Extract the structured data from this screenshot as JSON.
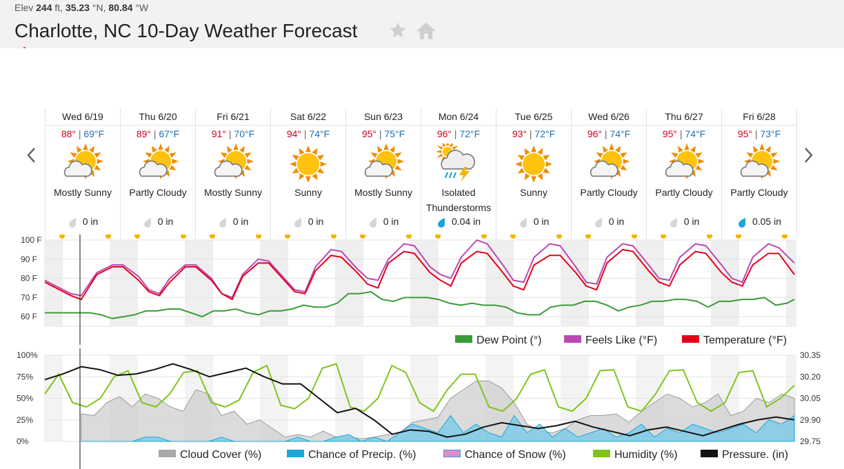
{
  "header": {
    "elev_label": "Elev",
    "elev_value": "244",
    "elev_unit": "ft,",
    "lat_value": "35.23",
    "lat_unit": "°N,",
    "lon_value": "80.84",
    "lon_unit": "°W",
    "title": "Charlotte, NC 10-Day Weather Forecast",
    "favorite_icon": "star-icon",
    "home_icon": "home-icon"
  },
  "days": [
    {
      "label": "Wed 6/19",
      "hi": "88°",
      "lo": "69°F",
      "icon": "partly-cloudy-icon",
      "condition": "Mostly Sunny",
      "condition2": "",
      "precip": "0 in",
      "precip_icon": "drop-gray-icon"
    },
    {
      "label": "Thu 6/20",
      "hi": "89°",
      "lo": "67°F",
      "icon": "partly-cloudy-icon",
      "condition": "Partly Cloudy",
      "condition2": "",
      "precip": "0 in",
      "precip_icon": "drop-gray-icon"
    },
    {
      "label": "Fri 6/21",
      "hi": "91°",
      "lo": "70°F",
      "icon": "partly-cloudy-icon",
      "condition": "Mostly Sunny",
      "condition2": "",
      "precip": "0 in",
      "precip_icon": "drop-gray-icon"
    },
    {
      "label": "Sat 6/22",
      "hi": "94°",
      "lo": "74°F",
      "icon": "sunny-icon",
      "condition": "Sunny",
      "condition2": "",
      "precip": "0 in",
      "precip_icon": "drop-gray-icon"
    },
    {
      "label": "Sun 6/23",
      "hi": "95°",
      "lo": "75°F",
      "icon": "partly-cloudy-icon",
      "condition": "Mostly Sunny",
      "condition2": "",
      "precip": "0 in",
      "precip_icon": "drop-gray-icon"
    },
    {
      "label": "Mon 6/24",
      "hi": "96°",
      "lo": "72°F",
      "icon": "thunderstorm-icon",
      "condition": "Isolated",
      "condition2": "Thunderstorms",
      "precip": "0.04 in",
      "precip_icon": "drop-blue-icon"
    },
    {
      "label": "Tue 6/25",
      "hi": "93°",
      "lo": "72°F",
      "icon": "sunny-icon",
      "condition": "Sunny",
      "condition2": "",
      "precip": "0 in",
      "precip_icon": "drop-gray-icon"
    },
    {
      "label": "Wed 6/26",
      "hi": "96°",
      "lo": "74°F",
      "icon": "partly-cloudy-icon",
      "condition": "Partly Cloudy",
      "condition2": "",
      "precip": "0 in",
      "precip_icon": "drop-gray-icon"
    },
    {
      "label": "Thu 6/27",
      "hi": "95°",
      "lo": "74°F",
      "icon": "partly-cloudy-icon",
      "condition": "Partly Cloudy",
      "condition2": "",
      "precip": "0 in",
      "precip_icon": "drop-gray-icon"
    },
    {
      "label": "Fri 6/28",
      "hi": "95°",
      "lo": "73°F",
      "icon": "partly-cloudy-icon",
      "condition": "Partly Cloudy",
      "condition2": "",
      "precip": "0.05 in",
      "precip_icon": "drop-blue-icon"
    }
  ],
  "nav": {
    "prev_icon": "chevron-left-icon",
    "next_icon": "chevron-right-icon"
  },
  "colors": {
    "temperature": "#e3001b",
    "feels_like": "#b948b3",
    "dew_point": "#3a9b37",
    "cloud_cover": "#a8a8a8",
    "precip_chance": "#1ba5d8",
    "snow_chance": "#e08bc8",
    "humidity": "#7fc41c",
    "pressure": "#111111",
    "hi_text": "#d0021b",
    "lo_text": "#1f6fb2"
  },
  "chart_data": [
    {
      "type": "line",
      "y_ticks": [
        "100 F",
        "90 F",
        "80 F",
        "70 F",
        "60 F"
      ],
      "ylim": [
        55,
        100
      ],
      "grid": true,
      "legend_position": "bottom-right",
      "x_days": [
        "Wed 6/19",
        "Thu 6/20",
        "Fri 6/21",
        "Sat 6/22",
        "Sun 6/23",
        "Mon 6/24",
        "Tue 6/25",
        "Wed 6/26",
        "Thu 6/27",
        "Fri 6/28"
      ],
      "series": [
        {
          "name": "Dew Point (°)",
          "key": "dew",
          "values": [
            62,
            62,
            62,
            62,
            61,
            59,
            60,
            61,
            63,
            63,
            64,
            64,
            62,
            60,
            63,
            63,
            64,
            62,
            61,
            63,
            63,
            64,
            66,
            65,
            65,
            67,
            72,
            72,
            73,
            69,
            68,
            70,
            70,
            70,
            69,
            67,
            66,
            67,
            66,
            66,
            65,
            62,
            61,
            61,
            65,
            66,
            66,
            68,
            68,
            66,
            63,
            65,
            66,
            68,
            68,
            69,
            69,
            68,
            65,
            68,
            68,
            69,
            69,
            70,
            66,
            67,
            69
          ],
          "x": [
            0,
            4,
            8,
            12,
            15,
            18,
            21,
            24,
            27,
            30,
            33,
            36,
            39,
            42,
            45,
            48,
            51,
            54,
            57,
            60,
            63,
            66,
            69,
            72,
            75,
            78,
            81,
            84,
            87,
            90,
            93,
            96,
            99,
            102,
            105,
            108,
            111,
            114,
            117,
            120,
            123,
            126,
            129,
            132,
            135,
            138,
            141,
            144,
            147,
            150,
            153,
            156,
            159,
            162,
            165,
            168,
            171,
            174,
            177,
            180,
            183,
            186,
            189,
            192,
            195,
            198,
            200
          ]
        },
        {
          "name": "Feels Like (°F)",
          "key": "feels",
          "values": [
            79,
            72,
            71,
            83,
            87,
            87,
            81,
            74,
            72,
            80,
            87,
            87,
            80,
            72,
            70,
            82,
            90,
            89,
            80,
            74,
            73,
            86,
            95,
            94,
            85,
            80,
            79,
            90,
            98,
            97,
            86,
            82,
            80,
            91,
            100,
            98,
            87,
            79,
            78,
            91,
            98,
            97,
            86,
            78,
            77,
            91,
            98,
            97,
            87,
            80,
            79,
            91,
            98,
            97,
            87,
            80,
            78,
            91,
            98,
            96,
            88
          ],
          "x": [
            0,
            5,
            7,
            10,
            13,
            15,
            18,
            20,
            22,
            24,
            27,
            29,
            32,
            34,
            36,
            38,
            41,
            43,
            46,
            48,
            50,
            52,
            55,
            57,
            60,
            62,
            64,
            66,
            69,
            71,
            74,
            76,
            78,
            80,
            83,
            85,
            88,
            90,
            92,
            94,
            97,
            99,
            102,
            104,
            106,
            108,
            111,
            113,
            116,
            118,
            120,
            122,
            125,
            127,
            130,
            132,
            134,
            136,
            139,
            141,
            144
          ]
        },
        {
          "name": "Temperature (°F)",
          "key": "temp",
          "values": [
            78,
            71,
            69,
            82,
            86,
            86,
            79,
            73,
            71,
            78,
            86,
            86,
            79,
            72,
            69,
            81,
            88,
            88,
            79,
            73,
            72,
            84,
            92,
            91,
            83,
            77,
            75,
            88,
            94,
            93,
            83,
            79,
            76,
            88,
            94,
            93,
            83,
            76,
            74,
            87,
            92,
            92,
            83,
            76,
            74,
            88,
            95,
            94,
            84,
            78,
            76,
            87,
            94,
            93,
            83,
            78,
            76,
            87,
            93,
            93,
            82
          ],
          "x": [
            0,
            5,
            7,
            10,
            13,
            15,
            18,
            20,
            22,
            24,
            27,
            29,
            32,
            34,
            36,
            38,
            41,
            43,
            46,
            48,
            50,
            52,
            55,
            57,
            60,
            62,
            64,
            66,
            69,
            71,
            74,
            76,
            78,
            80,
            83,
            85,
            88,
            90,
            92,
            94,
            97,
            99,
            102,
            104,
            106,
            108,
            111,
            113,
            116,
            118,
            120,
            122,
            125,
            127,
            130,
            132,
            134,
            136,
            139,
            141,
            144
          ]
        }
      ]
    },
    {
      "type": "area",
      "y_ticks": [
        "100%",
        "75%",
        "50%",
        "25%",
        "0%"
      ],
      "y2_ticks": [
        "30.35",
        "30.20",
        "30.05",
        "29.90",
        "29.75"
      ],
      "ylim": [
        0,
        100
      ],
      "y2lim": [
        29.75,
        30.35
      ],
      "grid": true,
      "legend_position": "bottom-right",
      "series": [
        {
          "name": "Cloud Cover (%)",
          "key": "cloud",
          "values": [
            32,
            30,
            45,
            52,
            40,
            55,
            50,
            40,
            35,
            60,
            55,
            30,
            35,
            20,
            25,
            15,
            5,
            8,
            5,
            12,
            5,
            5,
            3,
            5,
            8,
            10,
            22,
            25,
            28,
            50,
            60,
            70,
            70,
            62,
            45,
            20,
            12,
            10,
            15,
            25,
            30,
            30,
            32,
            22,
            35,
            45,
            55,
            50,
            40,
            45,
            55,
            30,
            35,
            50,
            45,
            55,
            50
          ]
        },
        {
          "name": "Chance of Precip. (%)",
          "key": "precip",
          "values": [
            0,
            0,
            0,
            0,
            0,
            5,
            5,
            0,
            0,
            0,
            0,
            5,
            0,
            0,
            0,
            0,
            0,
            5,
            0,
            0,
            5,
            8,
            0,
            5,
            0,
            10,
            20,
            15,
            10,
            30,
            10,
            20,
            10,
            5,
            30,
            10,
            20,
            5,
            15,
            5,
            10,
            15,
            5,
            10,
            20,
            5,
            15,
            10,
            20,
            15,
            10,
            15,
            20,
            10,
            25,
            20,
            30
          ]
        },
        {
          "name": "Chance of Snow (%)",
          "key": "snow",
          "values": []
        },
        {
          "name": "Humidity (%)",
          "key": "humidity",
          "values": [
            55,
            78,
            45,
            40,
            50,
            75,
            82,
            45,
            40,
            55,
            80,
            82,
            45,
            40,
            48,
            80,
            88,
            42,
            38,
            50,
            85,
            90,
            40,
            35,
            50,
            88,
            80,
            45,
            35,
            60,
            78,
            78,
            40,
            35,
            50,
            78,
            83,
            40,
            35,
            50,
            82,
            83,
            40,
            35,
            55,
            82,
            83,
            45,
            35,
            45,
            80,
            82,
            40,
            50,
            65
          ]
        },
        {
          "name": "Pressure. (in)",
          "key": "pressure",
          "values": [
            30.18,
            30.22,
            30.27,
            30.25,
            30.21,
            30.22,
            30.25,
            30.29,
            30.25,
            30.2,
            30.23,
            30.26,
            30.2,
            30.15,
            30.15,
            30.05,
            29.95,
            29.98,
            29.9,
            29.8,
            29.83,
            29.82,
            29.78,
            29.8,
            29.85,
            29.88,
            29.86,
            29.84,
            29.86,
            29.89,
            29.85,
            29.82,
            29.79,
            29.83,
            29.85,
            29.82,
            29.79,
            29.83,
            29.87,
            29.9,
            29.92,
            29.9
          ]
        }
      ]
    }
  ]
}
